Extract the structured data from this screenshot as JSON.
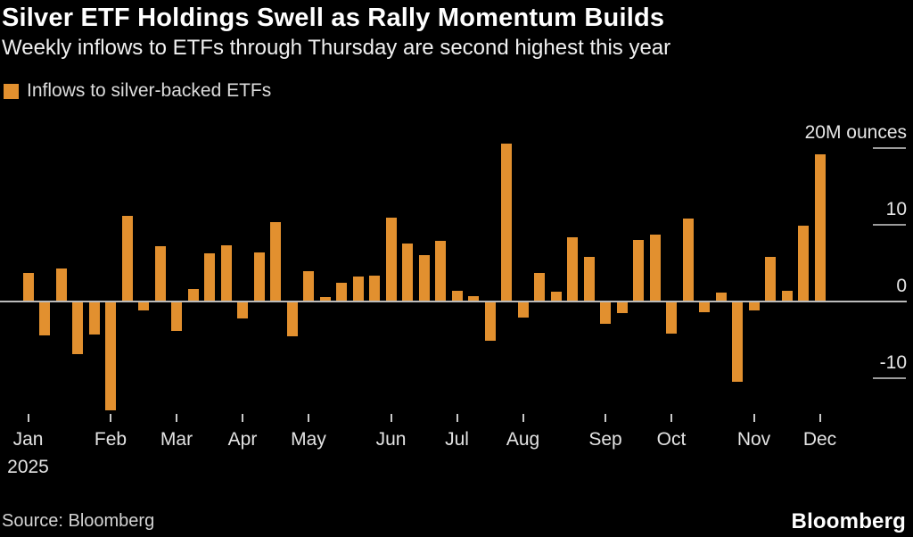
{
  "header": {
    "title": "Silver ETF Holdings Swell as Rally Momentum Builds",
    "subtitle": "Weekly inflows to ETFs through Thursday are second highest this year"
  },
  "legend": {
    "label": "Inflows to silver-backed ETFs",
    "swatch_color": "#E2902F",
    "swatch_icon": "legend-swatch-square"
  },
  "chart_data": {
    "type": "bar",
    "title": "Silver ETF Holdings Swell as Rally Momentum Builds",
    "subtitle": "Weekly inflows to ETFs through Thursday are second highest this year",
    "series_name": "Inflows to silver-backed ETFs",
    "unit": "M ounces",
    "frequency": "weekly",
    "x_months": [
      {
        "label": "Jan",
        "week_index": 0,
        "year": "2025"
      },
      {
        "label": "Feb",
        "week_index": 5
      },
      {
        "label": "Mar",
        "week_index": 9
      },
      {
        "label": "Apr",
        "week_index": 13
      },
      {
        "label": "May",
        "week_index": 17
      },
      {
        "label": "Jun",
        "week_index": 22
      },
      {
        "label": "Jul",
        "week_index": 26
      },
      {
        "label": "Aug",
        "week_index": 30
      },
      {
        "label": "Sep",
        "week_index": 35
      },
      {
        "label": "Oct",
        "week_index": 39
      },
      {
        "label": "Nov",
        "week_index": 44
      },
      {
        "label": "Dec",
        "week_index": 48
      }
    ],
    "values": [
      3.7,
      -4.5,
      4.3,
      -6.9,
      -4.4,
      -14.2,
      11.1,
      -1.2,
      7.1,
      -3.9,
      1.6,
      6.2,
      7.3,
      -2.3,
      6.3,
      10.3,
      -4.6,
      3.9,
      0.5,
      2.4,
      3.2,
      3.3,
      10.9,
      7.5,
      6.0,
      7.8,
      1.3,
      0.6,
      -5.2,
      20.5,
      -2.1,
      3.7,
      1.2,
      8.3,
      5.7,
      -3.0,
      -1.6,
      8.0,
      8.7,
      -4.2,
      10.7,
      -1.4,
      1.1,
      -10.5,
      -1.2,
      5.7,
      1.3,
      9.8,
      19.1
    ],
    "y_axis": [
      {
        "value": 20,
        "label": "20M ounces",
        "line": "segment"
      },
      {
        "value": 10,
        "label": "10",
        "line": "segment"
      },
      {
        "value": 0,
        "label": "0",
        "line": "full"
      },
      {
        "value": -10,
        "label": "-10",
        "line": "segment"
      }
    ],
    "ylim": [
      -16,
      23
    ],
    "grid": "right-segments",
    "legend_position": "top-left",
    "bar_color": "#E2902F",
    "zero_line_color": "#bbbbbb",
    "grid_segment_color": "#9b9b9b",
    "background_color": "#000000"
  },
  "footer": {
    "source": "Source: Bloomberg",
    "logo": "Bloomberg"
  }
}
